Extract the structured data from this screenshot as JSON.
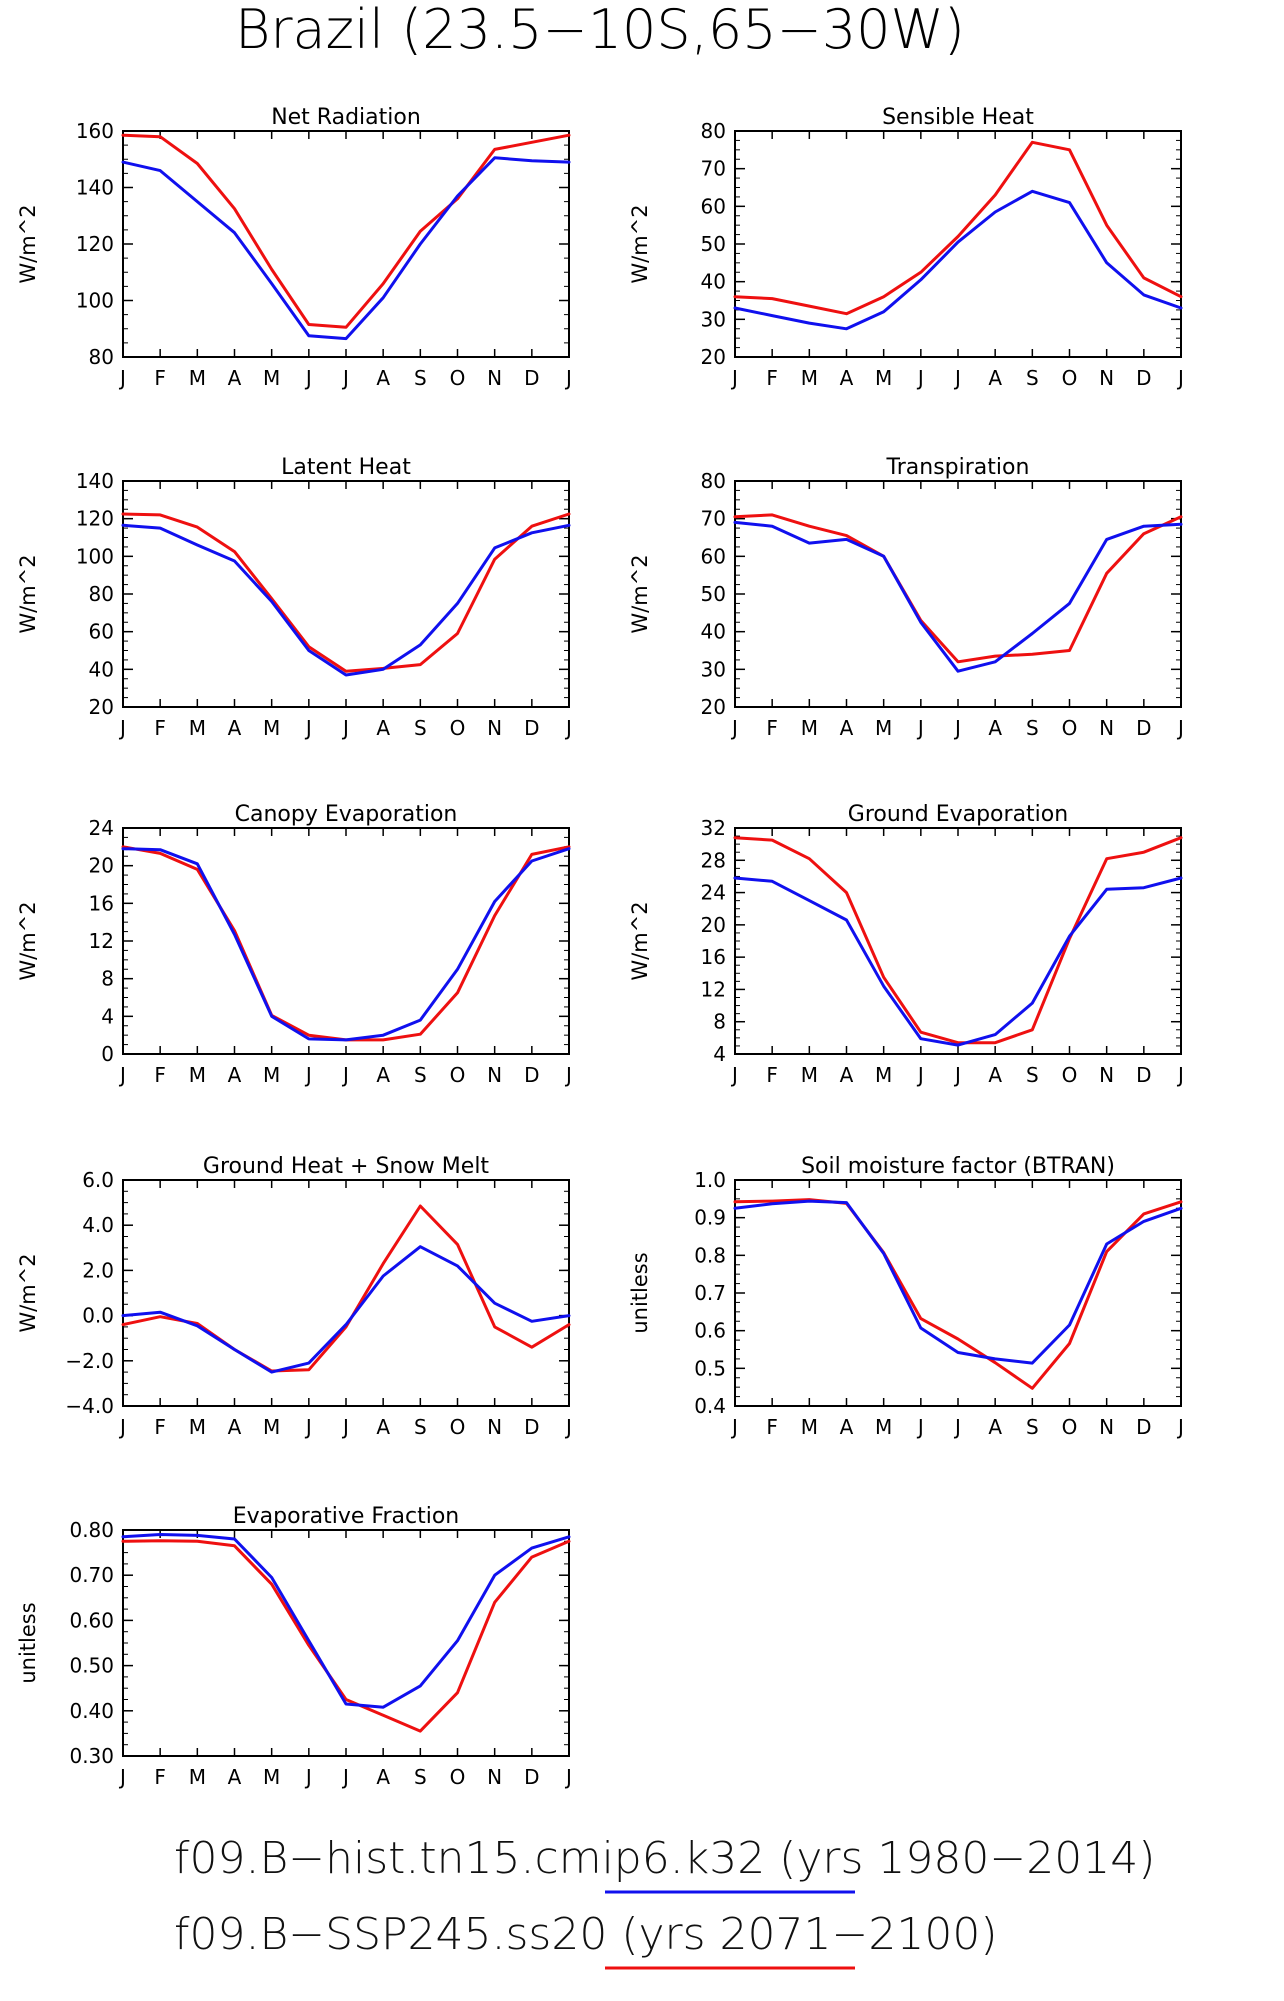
{
  "title": "Brazil (23.5−10S,65−30W)",
  "months": [
    "J",
    "F",
    "M",
    "A",
    "M",
    "J",
    "J",
    "A",
    "S",
    "O",
    "N",
    "D",
    "J"
  ],
  "legend": [
    {
      "label": "f09.B−hist.tn15.cmip6.k32 (yrs 1980−2014)",
      "color": "#1010ee"
    },
    {
      "label": "f09.B−SSP245.ss20 (yrs 2071−2100)",
      "color": "#ee1010"
    }
  ],
  "colors": {
    "hist": "#1010ee",
    "ssp": "#ee1010",
    "axis": "#000000"
  },
  "chart_data": [
    {
      "type": "line",
      "title": "Net Radiation",
      "ylabel": "W/m^2",
      "ylim": [
        80,
        160
      ],
      "yticks": [
        80,
        100,
        120,
        140,
        160
      ],
      "ytick_labels": [
        "80",
        "100",
        "120",
        "140",
        "160"
      ],
      "series": [
        {
          "values": [
            149,
            146,
            135,
            124,
            106,
            87.5,
            86.5,
            101,
            120,
            137,
            150.5,
            149.5,
            149
          ]
        },
        {
          "values": [
            158.5,
            158,
            148.5,
            132.5,
            111,
            91.5,
            90.5,
            106,
            124.5,
            136,
            153.5,
            156,
            158.5
          ]
        }
      ]
    },
    {
      "type": "line",
      "title": "Sensible Heat",
      "ylabel": "W/m^2",
      "ylim": [
        20,
        80
      ],
      "yticks": [
        20,
        30,
        40,
        50,
        60,
        70,
        80
      ],
      "ytick_labels": [
        "20",
        "30",
        "40",
        "50",
        "60",
        "70",
        "80"
      ],
      "series": [
        {
          "values": [
            33,
            31,
            29,
            27.5,
            32,
            40.5,
            50.5,
            58.5,
            64,
            61,
            45,
            36.5,
            33
          ]
        },
        {
          "values": [
            36,
            35.5,
            33.5,
            31.5,
            36,
            42.5,
            52,
            63,
            77,
            75,
            55,
            41,
            36
          ]
        }
      ]
    },
    {
      "type": "line",
      "title": "Latent Heat",
      "ylabel": "W/m^2",
      "ylim": [
        20,
        140
      ],
      "yticks": [
        20,
        40,
        60,
        80,
        100,
        120,
        140
      ],
      "ytick_labels": [
        "20",
        "40",
        "60",
        "80",
        "100",
        "120",
        "140"
      ],
      "series": [
        {
          "values": [
            116.5,
            115,
            106,
            97.5,
            76,
            50,
            37,
            40,
            53,
            75,
            104.5,
            112.5,
            116.5
          ]
        },
        {
          "values": [
            122.5,
            122,
            115.5,
            102.5,
            77.5,
            52,
            39,
            40.5,
            42.5,
            59,
            98.5,
            116,
            122.5
          ]
        }
      ]
    },
    {
      "type": "line",
      "title": "Transpiration",
      "ylabel": "W/m^2",
      "ylim": [
        20,
        80
      ],
      "yticks": [
        20,
        30,
        40,
        50,
        60,
        70,
        80
      ],
      "ytick_labels": [
        "20",
        "30",
        "40",
        "50",
        "60",
        "70",
        "80"
      ],
      "series": [
        {
          "values": [
            69,
            68,
            63.5,
            64.5,
            60,
            42.5,
            29.5,
            32,
            39.5,
            47.5,
            64.5,
            68,
            68.5
          ]
        },
        {
          "values": [
            70.5,
            71,
            68,
            65.5,
            60,
            43,
            32,
            33.5,
            34,
            35,
            55.5,
            66,
            70.5
          ]
        }
      ]
    },
    {
      "type": "line",
      "title": "Canopy Evaporation",
      "ylabel": "W/m^2",
      "ylim": [
        0,
        24
      ],
      "yticks": [
        0,
        4,
        8,
        12,
        16,
        20,
        24
      ],
      "ytick_labels": [
        "0",
        "4",
        "8",
        "12",
        "16",
        "20",
        "24"
      ],
      "series": [
        {
          "values": [
            21.8,
            21.7,
            20.2,
            12.7,
            4.0,
            1.6,
            1.5,
            2.0,
            3.6,
            9.0,
            16.2,
            20.5,
            21.8
          ]
        },
        {
          "values": [
            22.0,
            21.3,
            19.6,
            13.1,
            4.1,
            2.0,
            1.5,
            1.5,
            2.1,
            6.5,
            14.7,
            21.2,
            22.0
          ]
        }
      ]
    },
    {
      "type": "line",
      "title": "Ground Evaporation",
      "ylabel": "W/m^2",
      "ylim": [
        4,
        32
      ],
      "yticks": [
        4,
        8,
        12,
        16,
        20,
        24,
        28,
        32
      ],
      "ytick_labels": [
        "4",
        "8",
        "12",
        "16",
        "20",
        "24",
        "28",
        "32"
      ],
      "series": [
        {
          "values": [
            25.8,
            25.4,
            23,
            20.6,
            12.4,
            5.9,
            5.1,
            6.4,
            10.3,
            18.6,
            24.4,
            24.6,
            25.8
          ]
        },
        {
          "values": [
            30.8,
            30.5,
            28.2,
            24.0,
            13.5,
            6.7,
            5.4,
            5.4,
            7.0,
            18.3,
            28.2,
            29.0,
            30.8
          ]
        }
      ]
    },
    {
      "type": "line",
      "title": "Ground Heat + Snow Melt",
      "ylabel": "W/m^2",
      "ylim": [
        -4,
        6
      ],
      "yticks": [
        -4,
        -2,
        0,
        2,
        4,
        6
      ],
      "ytick_labels": [
        "−4.0",
        "−2.0",
        "0.0",
        "2.0",
        "4.0",
        "6.0"
      ],
      "series": [
        {
          "values": [
            0.0,
            0.15,
            -0.45,
            -1.5,
            -2.5,
            -2.1,
            -0.4,
            1.75,
            3.05,
            2.2,
            0.55,
            -0.25,
            0.0
          ]
        },
        {
          "values": [
            -0.4,
            -0.05,
            -0.35,
            -1.5,
            -2.45,
            -2.4,
            -0.5,
            2.3,
            4.85,
            3.15,
            -0.5,
            -1.4,
            -0.4
          ]
        }
      ]
    },
    {
      "type": "line",
      "title": "Soil moisture factor (BTRAN)",
      "ylabel": "unitless",
      "ylim": [
        0.4,
        1.0
      ],
      "yticks": [
        0.4,
        0.5,
        0.6,
        0.7,
        0.8,
        0.9,
        1.0
      ],
      "ytick_labels": [
        "0.4",
        "0.5",
        "0.6",
        "0.7",
        "0.8",
        "0.9",
        "1.0"
      ],
      "series": [
        {
          "values": [
            0.925,
            0.937,
            0.944,
            0.94,
            0.805,
            0.607,
            0.542,
            0.525,
            0.514,
            0.615,
            0.83,
            0.89,
            0.925
          ]
        },
        {
          "values": [
            0.942,
            0.944,
            0.948,
            0.938,
            0.807,
            0.632,
            0.578,
            0.515,
            0.447,
            0.566,
            0.81,
            0.91,
            0.942
          ]
        }
      ]
    },
    {
      "type": "line",
      "title": "Evaporative Fraction",
      "ylabel": "unitless",
      "ylim": [
        0.3,
        0.8
      ],
      "yticks": [
        0.3,
        0.4,
        0.5,
        0.6,
        0.7,
        0.8
      ],
      "ytick_labels": [
        "0.30",
        "0.40",
        "0.50",
        "0.60",
        "0.70",
        "0.80"
      ],
      "series": [
        {
          "values": [
            0.785,
            0.79,
            0.788,
            0.78,
            0.695,
            0.555,
            0.415,
            0.408,
            0.455,
            0.555,
            0.7,
            0.76,
            0.785
          ]
        },
        {
          "values": [
            0.775,
            0.776,
            0.775,
            0.765,
            0.68,
            0.545,
            0.425,
            0.39,
            0.355,
            0.44,
            0.64,
            0.74,
            0.775
          ]
        }
      ]
    }
  ]
}
